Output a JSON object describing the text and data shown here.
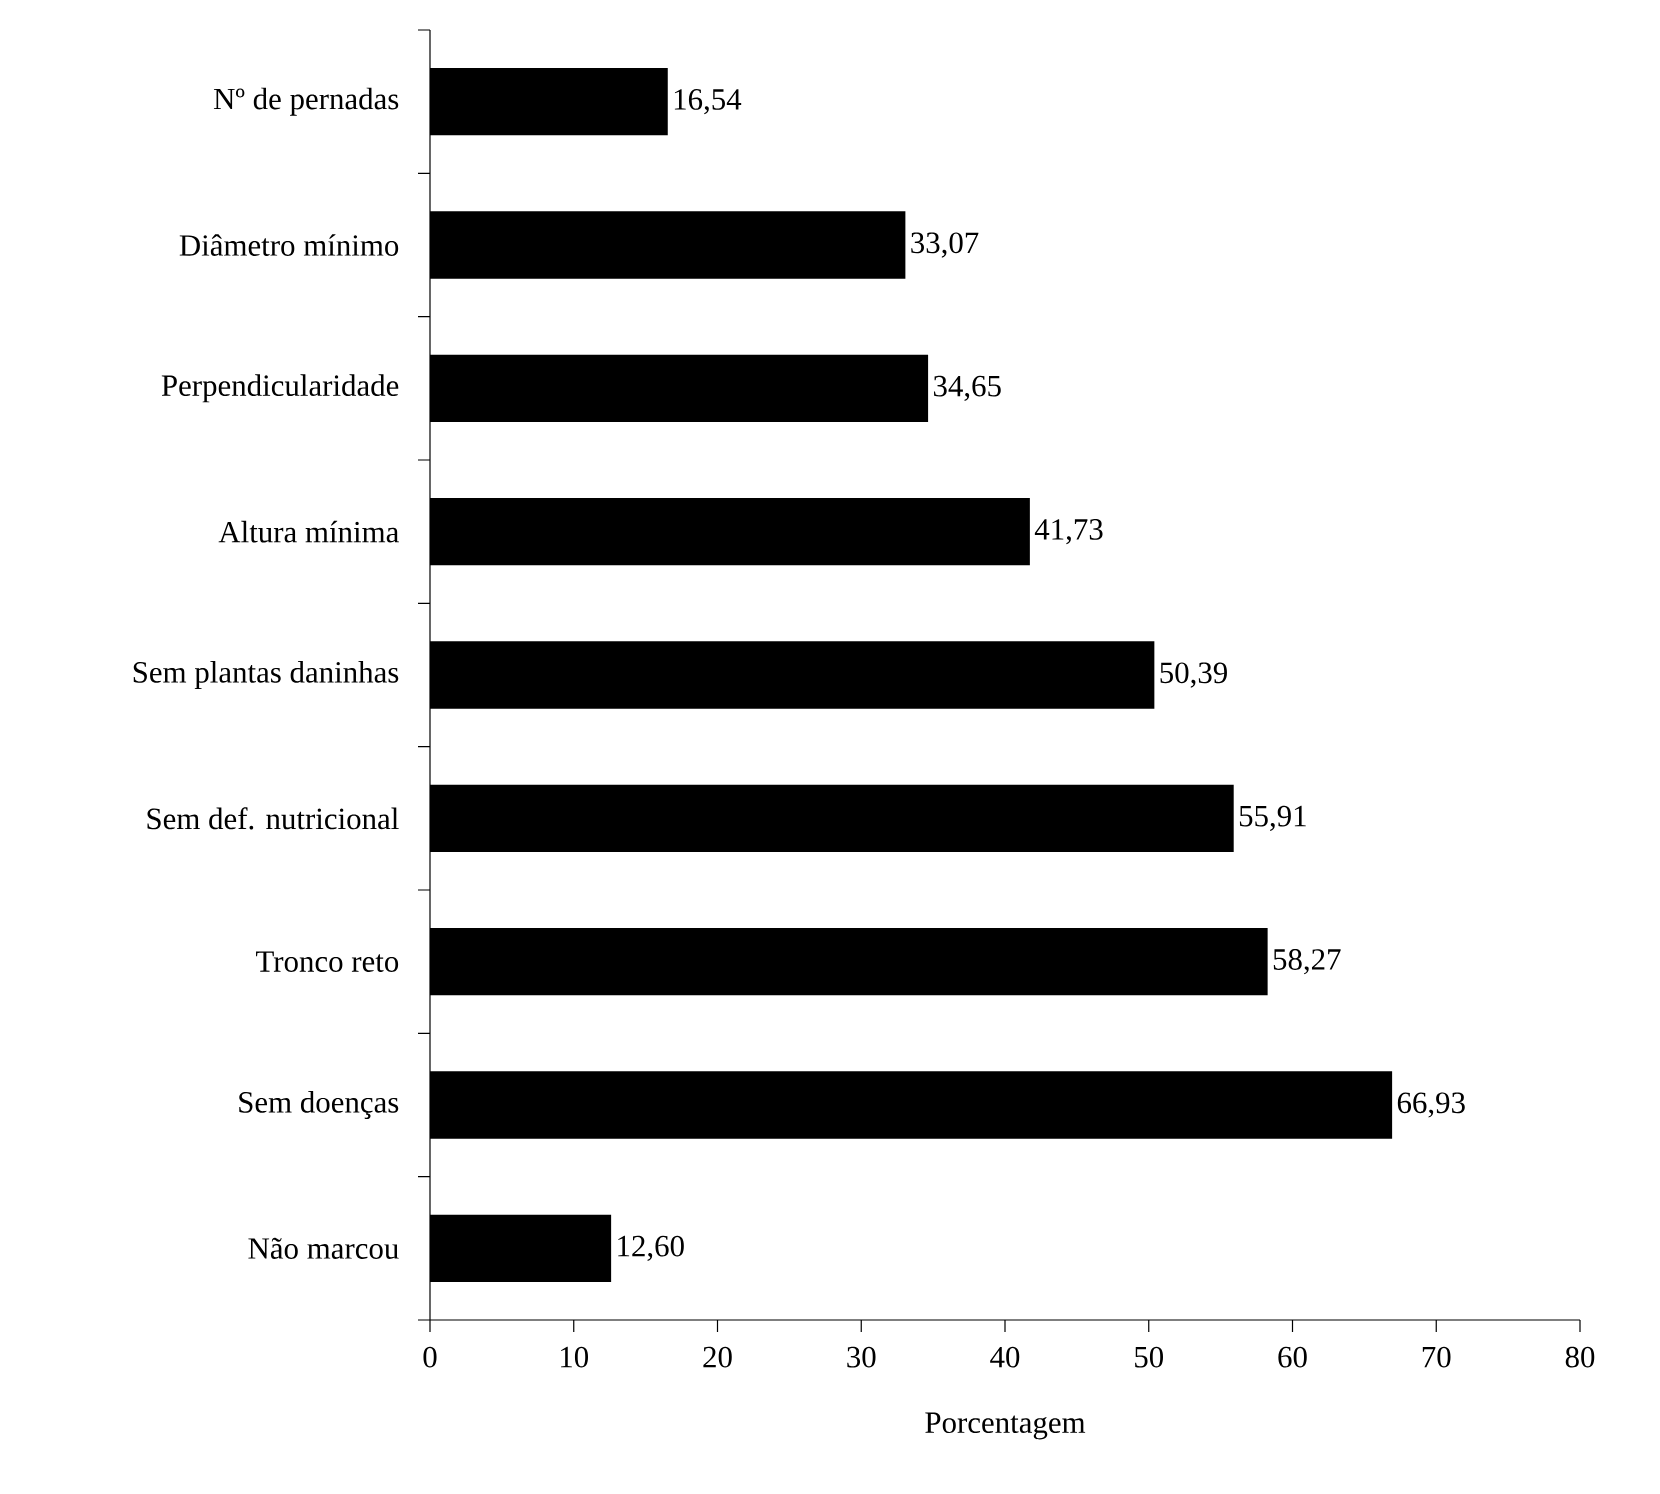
{
  "chart_data": {
    "type": "bar",
    "orientation": "horizontal",
    "xlabel": "Porcentagem",
    "categories": [
      "Nº de pernadas",
      "Diâmetro mínimo",
      "Perpendicularidade",
      "Altura mínima",
      "Sem plantas daninhas",
      "Sem def. nutricional",
      "Tronco reto",
      "Sem doenças",
      "Não marcou"
    ],
    "values": [
      16.54,
      33.07,
      34.65,
      41.73,
      50.39,
      55.91,
      58.27,
      66.93,
      12.6
    ],
    "value_labels": [
      "16,54",
      "33,07",
      "34,65",
      "41,73",
      "50,39",
      "55,91",
      "58,27",
      "66,93",
      "12,60"
    ],
    "color": "#000000",
    "xlim": [
      0,
      80
    ],
    "xticks": [
      0,
      10,
      20,
      30,
      40,
      50,
      60,
      70,
      80
    ],
    "grid": false
  }
}
